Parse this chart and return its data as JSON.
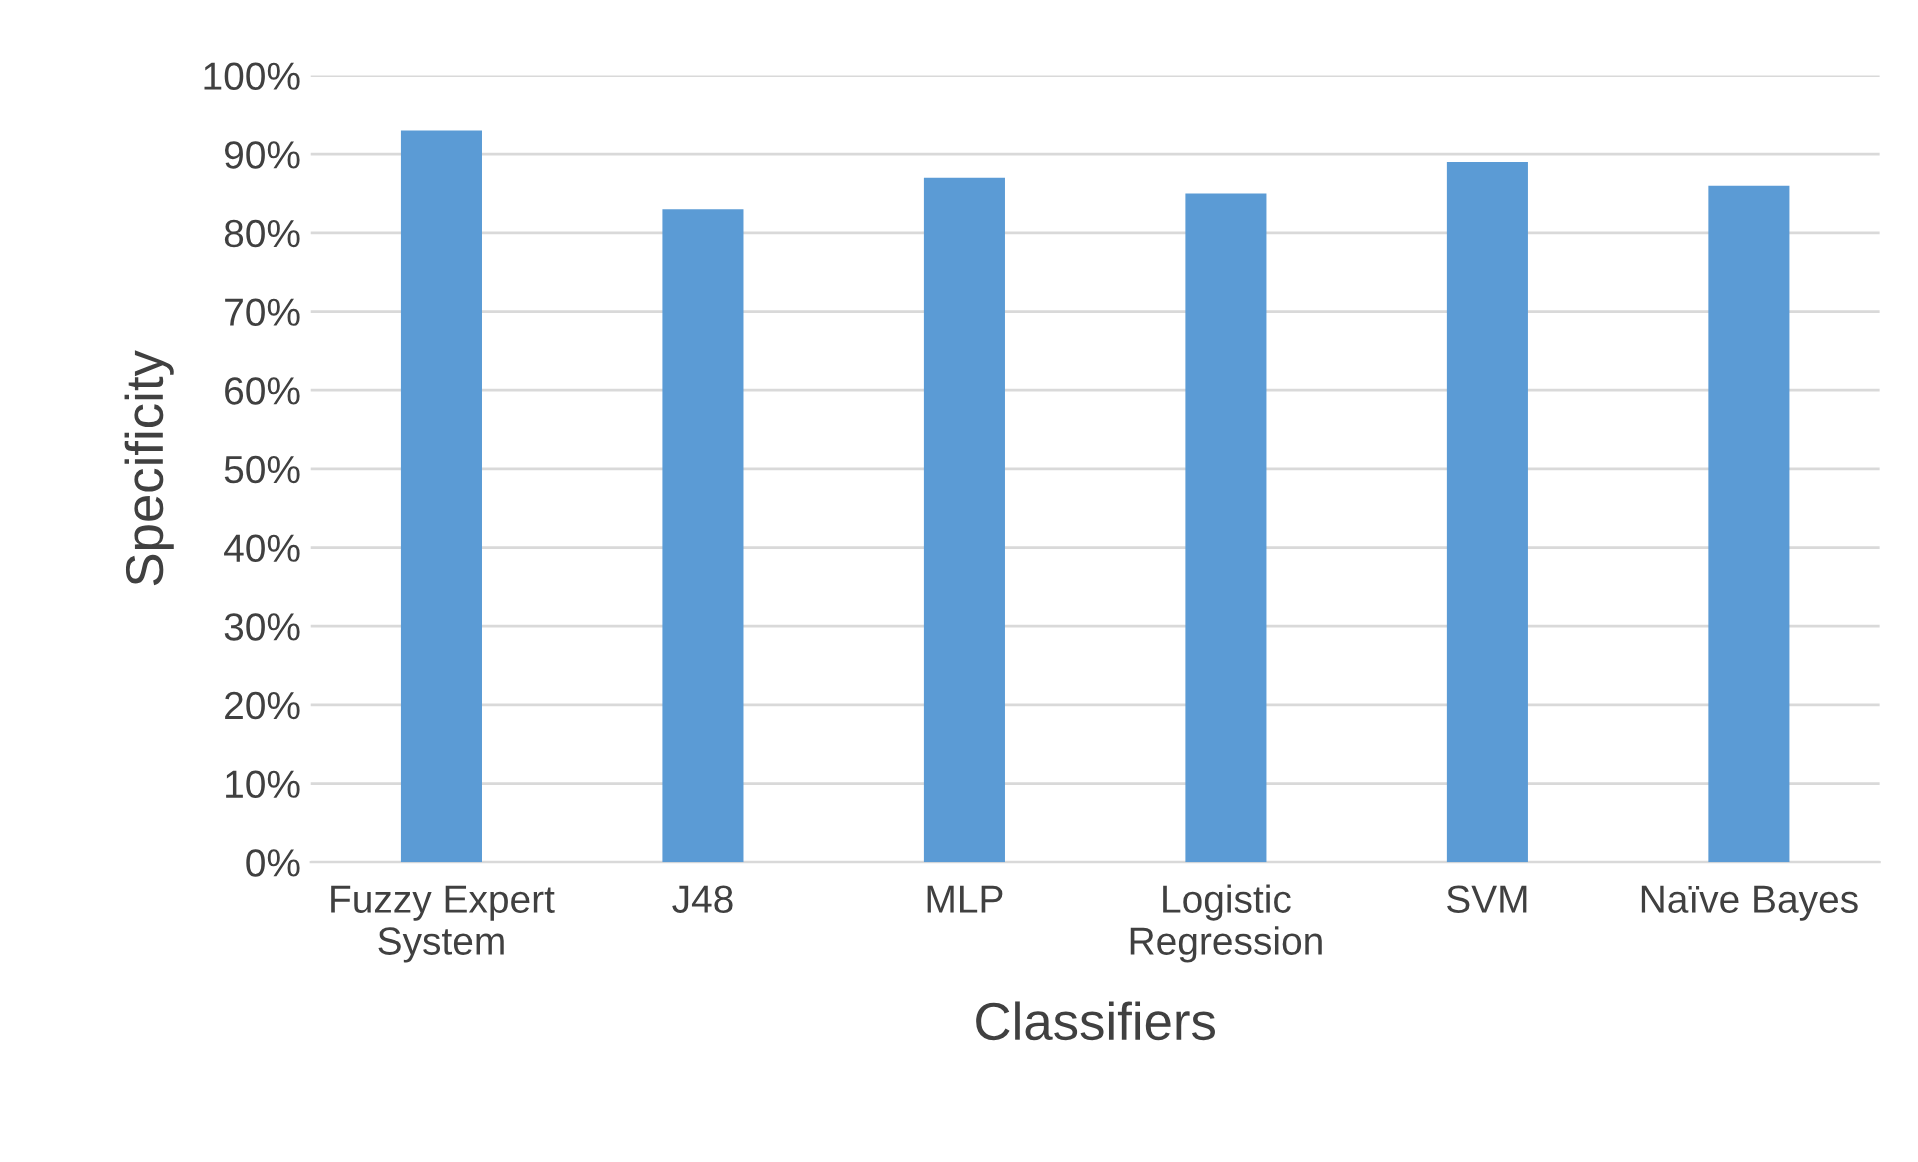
{
  "chart_data": {
    "type": "bar",
    "xlabel": "Classifiers",
    "ylabel": "Specificity",
    "categories": [
      "Fuzzy Expert\nSystem",
      "J48",
      "MLP",
      "Logistic\nRegression",
      "SVM",
      "Naïve Bayes"
    ],
    "values": [
      93,
      83,
      87,
      85,
      89,
      86
    ],
    "color": "#5b9bd5",
    "ylim": [
      0,
      100
    ],
    "yticks": [
      {
        "value": 0,
        "label": "0%"
      },
      {
        "value": 10,
        "label": "10%"
      },
      {
        "value": 20,
        "label": "20%"
      },
      {
        "value": 30,
        "label": "30%"
      },
      {
        "value": 40,
        "label": "40%"
      },
      {
        "value": 50,
        "label": "50%"
      },
      {
        "value": 60,
        "label": "60%"
      },
      {
        "value": 70,
        "label": "70%"
      },
      {
        "value": 80,
        "label": "80%"
      },
      {
        "value": 90,
        "label": "90%"
      },
      {
        "value": 100,
        "label": "100%"
      }
    ],
    "grid": "y"
  }
}
